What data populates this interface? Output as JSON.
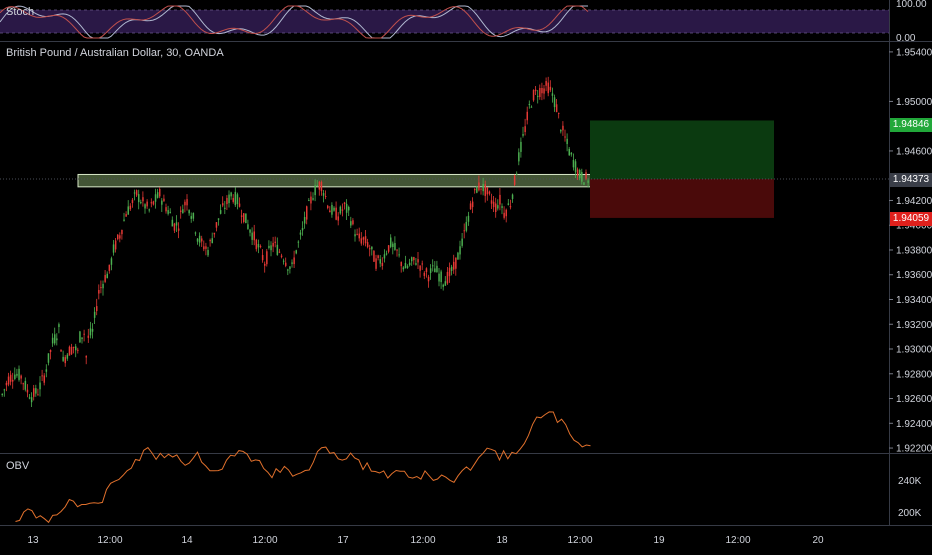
{
  "indicators": {
    "stoch": {
      "name": "Stoch",
      "ticks": [
        "100.00",
        "0.00"
      ]
    },
    "obv": {
      "name": "OBV",
      "ticks": [
        "240K",
        "200K"
      ]
    }
  },
  "main_pane": {
    "title": "British Pound / Australian Dollar, 30, OANDA",
    "price_ticks": [
      "1.95400",
      "1.95000",
      "1.94600",
      "1.94200",
      "1.94000",
      "1.93800",
      "1.93600",
      "1.93400",
      "1.93200",
      "1.93000",
      "1.92800",
      "1.92600",
      "1.92400",
      "1.92200"
    ],
    "tags": {
      "take_profit": {
        "label": "1.94846",
        "color": "#22a83a"
      },
      "current": {
        "label": "1.94373",
        "color": "#3a3e48"
      },
      "stop_loss": {
        "label": "1.94059",
        "color": "#e0201c"
      }
    }
  },
  "time_axis": {
    "labels": [
      "13",
      "12:00",
      "14",
      "12:00",
      "17",
      "12:00",
      "18",
      "12:00",
      "19",
      "12:00",
      "20"
    ]
  },
  "colors": {
    "up_candle": "#4caf50",
    "down_candle": "#e53935",
    "obv_line": "#e0702c",
    "stoch_k": "#b0b8d0",
    "stoch_d": "#c0504d",
    "stoch_band": "#2a1846",
    "zone_fill": "#7a9a60",
    "long_profit": "#0b3a10",
    "long_loss": "#4a0a0a"
  },
  "chart_data": {
    "type": "candlestick",
    "symbol": "GBPAUD",
    "interval": "30",
    "ylim": [
      1.9216,
      1.9548
    ],
    "support_zone": [
      1.9431,
      1.9441
    ],
    "long_position": {
      "entry": 1.94373,
      "take_profit": 1.94846,
      "stop_loss": 1.94059
    },
    "price_path": [
      [
        0,
        1.9263
      ],
      [
        3,
        1.9276
      ],
      [
        6,
        1.928
      ],
      [
        9,
        1.9278
      ],
      [
        12,
        1.9266
      ],
      [
        14,
        1.9262
      ],
      [
        17,
        1.9266
      ],
      [
        20,
        1.9278
      ],
      [
        24,
        1.9305
      ],
      [
        27,
        1.9316
      ],
      [
        29,
        1.929
      ],
      [
        31,
        1.9297
      ],
      [
        34,
        1.9302
      ],
      [
        36,
        1.9297
      ],
      [
        37,
        1.931
      ],
      [
        39,
        1.9313
      ],
      [
        40,
        1.9294
      ],
      [
        41,
        1.9309
      ],
      [
        43,
        1.9314
      ],
      [
        46,
        1.9346
      ],
      [
        49,
        1.9358
      ],
      [
        51,
        1.9363
      ],
      [
        53,
        1.938
      ],
      [
        56,
        1.9392
      ],
      [
        59,
        1.941
      ],
      [
        62,
        1.9418
      ],
      [
        64,
        1.9425
      ],
      [
        67,
        1.9418
      ],
      [
        70,
        1.9412
      ],
      [
        72,
        1.9418
      ],
      [
        75,
        1.9425
      ],
      [
        77,
        1.9418
      ],
      [
        80,
        1.9409
      ],
      [
        82,
        1.94
      ],
      [
        84,
        1.9401
      ],
      [
        86,
        1.9415
      ],
      [
        88,
        1.942
      ],
      [
        91,
        1.9405
      ],
      [
        93,
        1.9391
      ],
      [
        95,
        1.9385
      ],
      [
        98,
        1.938
      ],
      [
        100,
        1.939
      ],
      [
        102,
        1.94
      ],
      [
        104,
        1.941
      ],
      [
        107,
        1.9418
      ],
      [
        109,
        1.9425
      ],
      [
        112,
        1.942
      ],
      [
        114,
        1.9412
      ],
      [
        117,
        1.94
      ],
      [
        120,
        1.939
      ],
      [
        122,
        1.9382
      ],
      [
        125,
        1.937
      ],
      [
        127,
        1.9378
      ],
      [
        129,
        1.9385
      ],
      [
        131,
        1.9381
      ],
      [
        134,
        1.9375
      ],
      [
        136,
        1.9368
      ],
      [
        138,
        1.9365
      ],
      [
        140,
        1.938
      ],
      [
        143,
        1.9395
      ],
      [
        145,
        1.941
      ],
      [
        148,
        1.9425
      ],
      [
        150,
        1.9432
      ],
      [
        152,
        1.9433
      ],
      [
        154,
        1.9423
      ],
      [
        156,
        1.9413
      ],
      [
        158,
        1.941
      ],
      [
        160,
        1.9408
      ],
      [
        163,
        1.9415
      ],
      [
        165,
        1.941
      ],
      [
        167,
        1.94
      ],
      [
        169,
        1.939
      ],
      [
        172,
        1.9388
      ],
      [
        174,
        1.9385
      ],
      [
        176,
        1.9378
      ],
      [
        178,
        1.937
      ],
      [
        181,
        1.9372
      ],
      [
        183,
        1.938
      ],
      [
        185,
        1.9385
      ],
      [
        188,
        1.9378
      ],
      [
        190,
        1.937
      ],
      [
        192,
        1.9365
      ],
      [
        194,
        1.9368
      ],
      [
        197,
        1.9372
      ],
      [
        199,
        1.9368
      ],
      [
        201,
        1.9362
      ],
      [
        203,
        1.936
      ],
      [
        206,
        1.9365
      ],
      [
        208,
        1.936
      ],
      [
        210,
        1.9355
      ],
      [
        212,
        1.9358
      ],
      [
        215,
        1.9365
      ],
      [
        217,
        1.9375
      ],
      [
        219,
        1.9385
      ],
      [
        221,
        1.94
      ],
      [
        224,
        1.942
      ],
      [
        226,
        1.943
      ],
      [
        228,
        1.9432
      ],
      [
        230,
        1.9428
      ],
      [
        233,
        1.942
      ],
      [
        235,
        1.9415
      ],
      [
        237,
        1.942
      ],
      [
        239,
        1.941
      ],
      [
        242,
        1.9418
      ],
      [
        244,
        1.9435
      ],
      [
        246,
        1.9455
      ],
      [
        248,
        1.947
      ],
      [
        251,
        1.9495
      ],
      [
        253,
        1.9505
      ],
      [
        255,
        1.9508
      ],
      [
        257,
        1.951
      ],
      [
        260,
        1.9512
      ],
      [
        262,
        1.9505
      ],
      [
        264,
        1.9495
      ],
      [
        266,
        1.948
      ],
      [
        269,
        1.9465
      ],
      [
        271,
        1.9455
      ],
      [
        273,
        1.9448
      ],
      [
        275,
        1.944
      ],
      [
        277,
        1.9438
      ],
      [
        279,
        1.9437
      ]
    ]
  }
}
